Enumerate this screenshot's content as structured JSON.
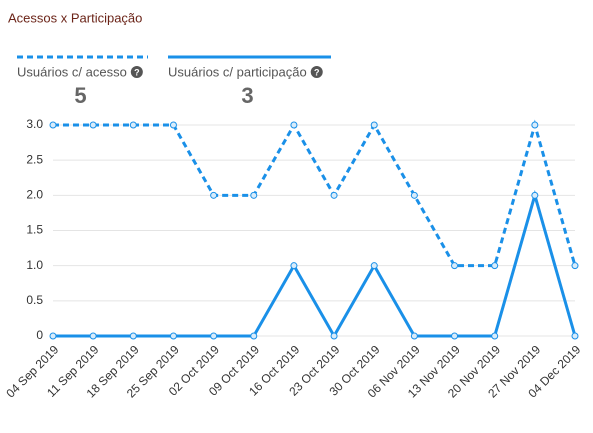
{
  "chart_data": {
    "type": "line",
    "title": "Acessos x Participação",
    "categories": [
      "04 Sep 2019",
      "11 Sep 2019",
      "18 Sep 2019",
      "25 Sep 2019",
      "02 Oct 2019",
      "09 Oct 2019",
      "16 Oct 2019",
      "23 Oct 2019",
      "30 Oct 2019",
      "06 Nov 2019",
      "13 Nov 2019",
      "20 Nov 2019",
      "27 Nov 2019",
      "04 Dec 2019"
    ],
    "series": [
      {
        "name": "Usuários c/ acesso",
        "total": 5,
        "color": "#1a90e8",
        "line_style": "dashed",
        "values": [
          3,
          3,
          3,
          3,
          2,
          2,
          3,
          2,
          3,
          2,
          1,
          1,
          3,
          1
        ]
      },
      {
        "name": "Usuários c/ participação",
        "total": 3,
        "color": "#1a90e8",
        "line_style": "solid",
        "values": [
          0,
          0,
          0,
          0,
          0,
          0,
          1,
          0,
          1,
          0,
          0,
          0,
          2,
          0
        ]
      }
    ],
    "ylim": [
      0,
      3
    ],
    "yticks": [
      0,
      0.5,
      {
        "value": 1,
        "label": "1.0"
      },
      1.5,
      {
        "value": 2,
        "label": "2.0"
      },
      2.5,
      {
        "value": 3,
        "label": "3.0"
      }
    ],
    "grid": true
  }
}
